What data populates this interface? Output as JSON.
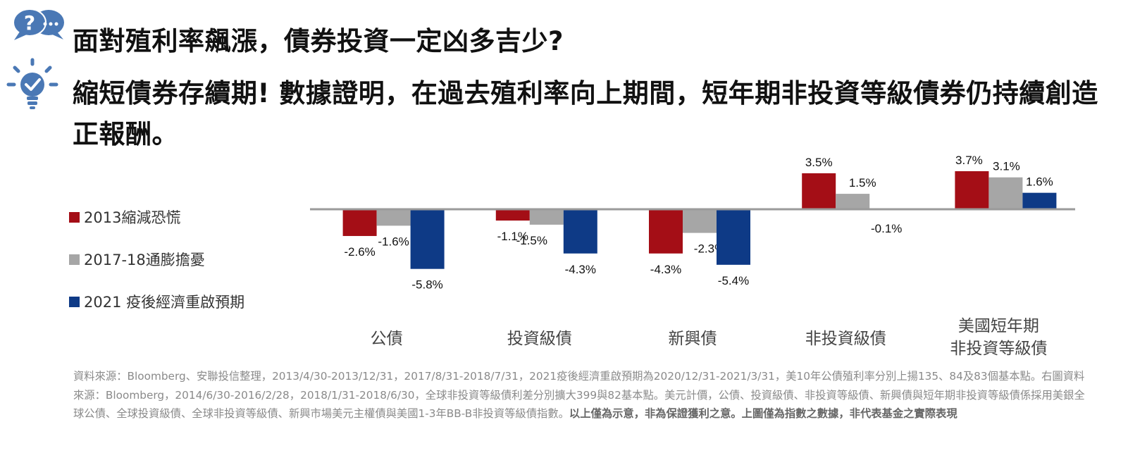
{
  "headline": "面對殖利率飆漲，債券投資一定凶多吉少?",
  "subheadline": "縮短債券存續期! 數據證明，在過去殖利率向上期間，短年期非投資等級債券仍持續創造正報酬。",
  "icons": {
    "question": "question-bubble-icon",
    "idea": "lightbulb-icon"
  },
  "chart_data": {
    "type": "bar",
    "categories": [
      [
        "公債"
      ],
      [
        "投資級債"
      ],
      [
        "新興債"
      ],
      [
        "非投資級債"
      ],
      [
        "美國短年期",
        "非投資等級債"
      ]
    ],
    "series": [
      {
        "name": "2013縮減恐慌",
        "color": "#a40e16",
        "values": [
          -2.6,
          -1.1,
          -4.3,
          3.5,
          3.7
        ],
        "labels": [
          "-2.6%",
          "-1.1%",
          "-4.3%",
          "3.5%",
          "3.7%"
        ]
      },
      {
        "name": "2017-18通膨擔憂",
        "color": "#a6a6a6",
        "values": [
          -1.6,
          -1.5,
          -2.3,
          1.5,
          3.1
        ],
        "labels": [
          "-1.6%",
          "-1.5%",
          "-2.3%",
          "1.5%",
          "3.1%"
        ]
      },
      {
        "name": "2021 疫後經濟重啟預期",
        "color": "#0e3a86",
        "values": [
          -5.8,
          -4.3,
          -5.4,
          -0.1,
          1.6
        ],
        "labels": [
          "-5.8%",
          "-4.3%",
          "-5.4%",
          "-0.1%",
          "1.6%"
        ]
      }
    ],
    "legend_position": "left",
    "grid": false
  },
  "footnote": {
    "text": "資料來源：Bloomberg、安聯投信整理，2013/4/30-2013/12/31，2017/8/31-2018/7/31，2021疫後經濟重啟預期為2020/12/31-2021/3/31，美10年公債殖利率分別上揚135、84及83個基本點。右圖資料來源：Bloomberg，2014/6/30-2016/2/28，2018/1/31-2018/6/30，全球非投資等級債利差分別擴大399與82基本點。美元計價，公債、投資級債、非投資等級債、新興債與短年期非投資等級債係採用美銀全球公債、全球投資級債、全球非投資等級債、新興市場美元主權債與美國1-3年BB-B非投資等級債指數。",
    "bold": "以上僅為示意，非為保證獲利之意。上圖僅為指數之數據，非代表基金之實際表現"
  }
}
